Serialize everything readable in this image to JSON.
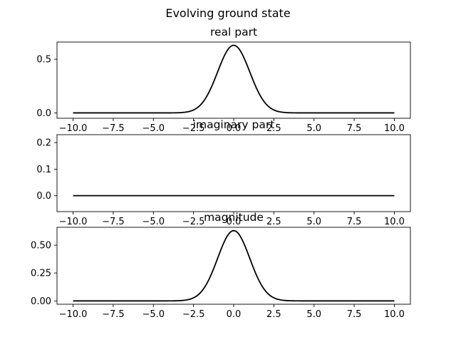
{
  "figure": {
    "suptitle": "Evolving ground state"
  },
  "chart_data": [
    {
      "type": "line",
      "title": "real part",
      "xlabel": "",
      "ylabel": "",
      "xlim": [
        -11.0,
        11.0
      ],
      "ylim": [
        -0.05,
        0.66
      ],
      "xticks": [
        -10.0,
        -7.5,
        -5.0,
        -2.5,
        0.0,
        2.5,
        5.0,
        7.5,
        10.0
      ],
      "xtick_labels": [
        "−10.0",
        "−7.5",
        "−5.0",
        "−2.5",
        "0.0",
        "2.5",
        "5.0",
        "7.5",
        "10.0"
      ],
      "yticks": [
        0.0,
        0.5
      ],
      "ytick_labels": [
        "0.0",
        "0.5"
      ],
      "line_color": "#000000",
      "curve": {
        "kind": "gaussian",
        "amplitude": 0.63,
        "center": 0.0,
        "sigma": 1.0,
        "x_range": [
          -10.0,
          10.0
        ]
      }
    },
    {
      "type": "line",
      "title": "imaginary part",
      "xlabel": "",
      "ylabel": "",
      "xlim": [
        -11.0,
        11.0
      ],
      "ylim": [
        -0.06,
        0.23
      ],
      "xticks": [
        -10.0,
        -7.5,
        -5.0,
        -2.5,
        0.0,
        2.5,
        5.0,
        7.5,
        10.0
      ],
      "xtick_labels": [
        "−10.0",
        "−7.5",
        "−5.0",
        "−2.5",
        "0.0",
        "2.5",
        "5.0",
        "7.5",
        "10.0"
      ],
      "yticks": [
        0.0,
        0.1,
        0.2
      ],
      "ytick_labels": [
        "0.0",
        "0.1",
        "0.2"
      ],
      "line_color": "#000000",
      "curve": {
        "kind": "gaussian",
        "amplitude": 0.0,
        "center": 0.0,
        "sigma": 1.0,
        "x_range": [
          -10.0,
          10.0
        ]
      }
    },
    {
      "type": "line",
      "title": "magnitude",
      "xlabel": "",
      "ylabel": "",
      "xlim": [
        -11.0,
        11.0
      ],
      "ylim": [
        -0.03,
        0.66
      ],
      "xticks": [
        -10.0,
        -7.5,
        -5.0,
        -2.5,
        0.0,
        2.5,
        5.0,
        7.5,
        10.0
      ],
      "xtick_labels": [
        "−10.0",
        "−7.5",
        "−5.0",
        "−2.5",
        "0.0",
        "2.5",
        "5.0",
        "7.5",
        "10.0"
      ],
      "yticks": [
        0.0,
        0.25,
        0.5
      ],
      "ytick_labels": [
        "0.00",
        "0.25",
        "0.50"
      ],
      "line_color": "#000000",
      "curve": {
        "kind": "gaussian",
        "amplitude": 0.63,
        "center": 0.0,
        "sigma": 1.0,
        "x_range": [
          -10.0,
          10.0
        ]
      }
    }
  ]
}
